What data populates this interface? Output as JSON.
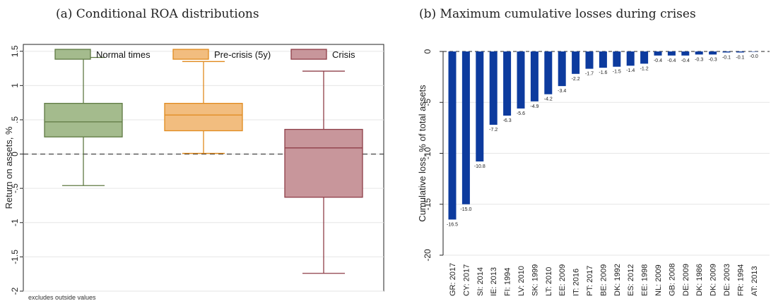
{
  "captions": {
    "a": "(a) Conditional ROA distributions",
    "b": "(b) Maximum cumulative losses during crises"
  },
  "chart_data": [
    {
      "type": "box",
      "ylabel": "Return on assets, %",
      "ylim": [
        -2,
        1.6
      ],
      "yticks": [
        -2,
        -1.5,
        -1,
        -0.5,
        0,
        0.5,
        1,
        1.5
      ],
      "ytick_labels": [
        "-2",
        "-1.5",
        "-1",
        "-.5",
        "0",
        ".5",
        "1",
        "1.5"
      ],
      "grid": true,
      "reference_line": 0,
      "legend_position": "top",
      "note": "excludes outside values",
      "series": [
        {
          "name": "Normal times",
          "min": -0.46,
          "q1": 0.25,
          "median": 0.47,
          "q3": 0.74,
          "max": 1.41,
          "fill": "#a4bb8d",
          "stroke": "#5f7a43"
        },
        {
          "name": "Pre-crisis (5y)",
          "min": 0.01,
          "q1": 0.34,
          "median": 0.57,
          "q3": 0.74,
          "max": 1.35,
          "fill": "#f2bd7f",
          "stroke": "#e08a1e"
        },
        {
          "name": "Crisis",
          "min": -1.74,
          "q1": -0.63,
          "median": 0.09,
          "q3": 0.36,
          "max": 1.21,
          "fill": "#c8969b",
          "stroke": "#8e3e48"
        }
      ]
    },
    {
      "type": "bar",
      "ylabel": "Cumulative loss, % of total assets",
      "ylim": [
        -20,
        0
      ],
      "yticks": [
        0,
        -5,
        -10,
        -15,
        -20
      ],
      "ytick_labels": [
        "0",
        "-5",
        "-10",
        "-15",
        "-20"
      ],
      "grid": true,
      "bar_color": "#0d3b9e",
      "categories": [
        "GR: 2017",
        "CY: 2017",
        "SI: 2014",
        "IE: 2013",
        "FI: 1994",
        "LV: 2010",
        "SK: 1999",
        "LT: 2010",
        "EE: 2009",
        "IT: 2016",
        "PT: 2017",
        "BE: 2009",
        "DK: 1992",
        "ES: 2012",
        "EE: 1998",
        "NL: 2009",
        "GB: 2008",
        "DE: 2009",
        "DK: 1986",
        "DK: 2009",
        "DE: 2003",
        "FR: 1994",
        "AT: 2013"
      ],
      "values": [
        -16.5,
        -15.0,
        -10.8,
        -7.2,
        -6.3,
        -5.6,
        -4.9,
        -4.2,
        -3.4,
        -2.2,
        -1.7,
        -1.6,
        -1.5,
        -1.4,
        -1.2,
        -0.4,
        -0.4,
        -0.4,
        -0.3,
        -0.3,
        -0.1,
        -0.1,
        -0.0
      ],
      "value_labels": [
        "-16.5",
        "-15.0",
        "-10.8",
        "-7.2",
        "-6.3",
        "-5.6",
        "-4.9",
        "-4.2",
        "-3.4",
        "-2.2",
        "-1.7",
        "-1.6",
        "-1.5",
        "-1.4",
        "-1.2",
        "-0.4",
        "-0.4",
        "-0.4",
        "-0.3",
        "-0.3",
        "-0.1",
        "-0.1",
        "-0.0"
      ]
    }
  ]
}
